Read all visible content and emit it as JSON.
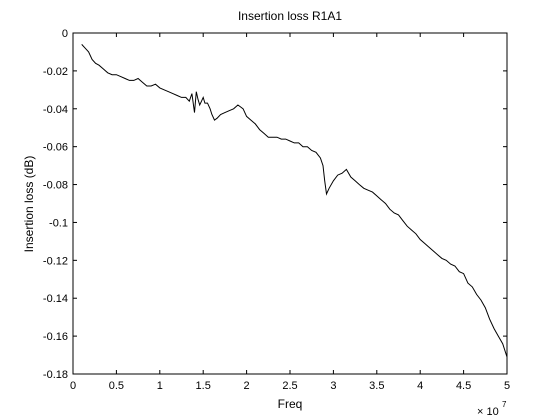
{
  "chart_data": {
    "type": "line",
    "title": "Insertion loss R1A1",
    "xlabel": "Freq",
    "ylabel": "Insertion loss (dB)",
    "x_multiplier_label": "× 10",
    "x_multiplier_exponent": "7",
    "xlim": [
      0,
      5
    ],
    "ylim": [
      -0.18,
      0
    ],
    "xticks": [
      0,
      0.5,
      1,
      1.5,
      2,
      2.5,
      3,
      3.5,
      4,
      4.5,
      5
    ],
    "xtick_labels": [
      "0",
      "0.5",
      "1",
      "1.5",
      "2",
      "2.5",
      "3",
      "3.5",
      "4",
      "4.5",
      "5"
    ],
    "yticks": [
      0,
      -0.02,
      -0.04,
      -0.06,
      -0.08,
      -0.1,
      -0.12,
      -0.14,
      -0.16,
      -0.18
    ],
    "ytick_labels": [
      "0",
      "-0.02",
      "-0.04",
      "-0.06",
      "-0.08",
      "-0.1",
      "-0.12",
      "-0.14",
      "-0.16",
      "-0.18"
    ],
    "grid": false,
    "line_color": "#000000",
    "series": [
      {
        "x": [
          0.1,
          0.14,
          0.18,
          0.22,
          0.26,
          0.3,
          0.35,
          0.4,
          0.45,
          0.5,
          0.55,
          0.6,
          0.65,
          0.7,
          0.75,
          0.8,
          0.85,
          0.9,
          0.95,
          1.0,
          1.05,
          1.1,
          1.15,
          1.2,
          1.25,
          1.3,
          1.34,
          1.37,
          1.4,
          1.42,
          1.44,
          1.46,
          1.48,
          1.5,
          1.52,
          1.55,
          1.58,
          1.6,
          1.63,
          1.66,
          1.7,
          1.75,
          1.8,
          1.85,
          1.9,
          1.93,
          1.96,
          2.0,
          2.05,
          2.1,
          2.15,
          2.2,
          2.25,
          2.3,
          2.35,
          2.4,
          2.45,
          2.5,
          2.55,
          2.6,
          2.65,
          2.7,
          2.75,
          2.8,
          2.85,
          2.88,
          2.9,
          2.92,
          2.95,
          3.0,
          3.05,
          3.1,
          3.15,
          3.2,
          3.25,
          3.3,
          3.35,
          3.4,
          3.45,
          3.5,
          3.55,
          3.6,
          3.65,
          3.7,
          3.75,
          3.8,
          3.85,
          3.9,
          3.95,
          4.0,
          4.05,
          4.1,
          4.15,
          4.2,
          4.25,
          4.3,
          4.35,
          4.4,
          4.45,
          4.5,
          4.55,
          4.6,
          4.65,
          4.7,
          4.75,
          4.8,
          4.85,
          4.9,
          4.95,
          5.0
        ],
        "y": [
          -0.006,
          -0.008,
          -0.01,
          -0.014,
          -0.016,
          -0.017,
          -0.019,
          -0.021,
          -0.022,
          -0.022,
          -0.023,
          -0.024,
          -0.025,
          -0.025,
          -0.024,
          -0.026,
          -0.028,
          -0.028,
          -0.027,
          -0.029,
          -0.03,
          -0.031,
          -0.032,
          -0.033,
          -0.034,
          -0.034,
          -0.036,
          -0.032,
          -0.042,
          -0.031,
          -0.035,
          -0.038,
          -0.036,
          -0.034,
          -0.037,
          -0.037,
          -0.04,
          -0.043,
          -0.046,
          -0.045,
          -0.043,
          -0.042,
          -0.041,
          -0.04,
          -0.038,
          -0.039,
          -0.04,
          -0.044,
          -0.046,
          -0.048,
          -0.051,
          -0.053,
          -0.055,
          -0.055,
          -0.055,
          -0.056,
          -0.056,
          -0.057,
          -0.058,
          -0.058,
          -0.06,
          -0.06,
          -0.062,
          -0.063,
          -0.066,
          -0.07,
          -0.078,
          -0.085,
          -0.082,
          -0.078,
          -0.075,
          -0.074,
          -0.072,
          -0.076,
          -0.078,
          -0.08,
          -0.082,
          -0.083,
          -0.084,
          -0.086,
          -0.088,
          -0.09,
          -0.093,
          -0.095,
          -0.096,
          -0.099,
          -0.102,
          -0.104,
          -0.106,
          -0.109,
          -0.111,
          -0.113,
          -0.115,
          -0.117,
          -0.119,
          -0.12,
          -0.122,
          -0.123,
          -0.126,
          -0.127,
          -0.132,
          -0.134,
          -0.138,
          -0.141,
          -0.145,
          -0.151,
          -0.156,
          -0.16,
          -0.164,
          -0.171
        ]
      }
    ]
  }
}
